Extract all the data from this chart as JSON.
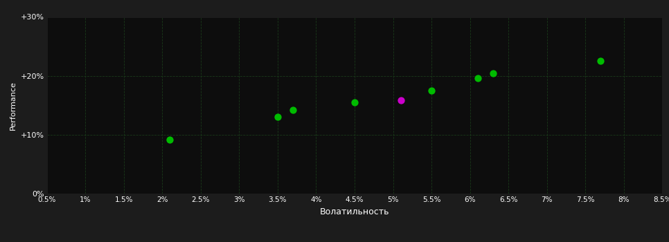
{
  "background_color": "#1c1c1c",
  "plot_bg_color": "#0d0d0d",
  "grid_color": "#1a3a1a",
  "text_color": "#ffffff",
  "xlabel": "Волатильность",
  "ylabel": "Performance",
  "xlim": [
    0.005,
    0.085
  ],
  "ylim": [
    0.0,
    0.3
  ],
  "xticks": [
    0.005,
    0.01,
    0.015,
    0.02,
    0.025,
    0.03,
    0.035,
    0.04,
    0.045,
    0.05,
    0.055,
    0.06,
    0.065,
    0.07,
    0.075,
    0.08,
    0.085
  ],
  "yticks": [
    0.0,
    0.1,
    0.2,
    0.3
  ],
  "ytick_labels": [
    "0%",
    "+10%",
    "+20%",
    "+30%"
  ],
  "xtick_labels": [
    "0.5%",
    "1%",
    "1.5%",
    "2%",
    "2.5%",
    "3%",
    "3.5%",
    "4%",
    "4.5%",
    "5%",
    "5.5%",
    "6%",
    "6.5%",
    "7%",
    "7.5%",
    "8%",
    "8.5%"
  ],
  "green_points": [
    [
      0.021,
      0.092
    ],
    [
      0.035,
      0.13
    ],
    [
      0.037,
      0.142
    ],
    [
      0.045,
      0.155
    ],
    [
      0.055,
      0.175
    ],
    [
      0.061,
      0.196
    ],
    [
      0.063,
      0.204
    ],
    [
      0.077,
      0.225
    ]
  ],
  "magenta_points": [
    [
      0.051,
      0.158
    ]
  ],
  "green_color": "#00bb00",
  "magenta_color": "#cc00cc",
  "marker_size": 55
}
